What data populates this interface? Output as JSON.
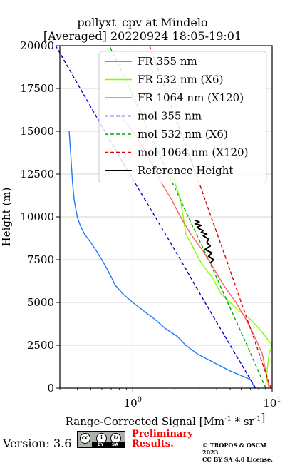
{
  "chart_data": {
    "type": "line",
    "title": "pollyxt_cpv at Mindelo",
    "subtitle": "[Averaged] 20220924 18:05-19:01",
    "xlabel": "Range-Corrected Signal [Mm^-1 * sr^-1]",
    "ylabel": "Height (m)",
    "xscale": "log",
    "xlim": [
      0.3,
      10
    ],
    "ylim": [
      0,
      20000
    ],
    "xticks": [
      {
        "value": 1,
        "label": "10^0"
      },
      {
        "value": 10,
        "label": "10^1"
      }
    ],
    "yticks": [
      0,
      2500,
      5000,
      7500,
      10000,
      12500,
      15000,
      17500,
      20000
    ],
    "ytick_labels": [
      "0",
      "2500",
      "5000",
      "7500",
      "10000",
      "12500",
      "15000",
      "17500",
      "20000"
    ],
    "grid": true,
    "legend_position": "top-right",
    "series": [
      {
        "name": "FR 355 nm",
        "style": "solid",
        "color": "#1f77ff",
        "x": [
          7.5,
          7.0,
          5.0,
          3.8,
          2.9,
          2.4,
          2.1,
          1.7,
          1.45,
          1.2,
          1.0,
          0.85,
          0.75,
          0.7,
          0.65,
          0.6,
          0.55,
          0.5,
          0.45,
          0.42,
          0.4,
          0.38,
          0.37,
          0.36,
          0.35
        ],
        "y": [
          0,
          500,
          1000,
          1500,
          2000,
          2500,
          3000,
          3500,
          4000,
          4500,
          5000,
          5500,
          6000,
          6500,
          7000,
          7500,
          8000,
          8500,
          9000,
          9500,
          10000,
          11000,
          12000,
          13500,
          15000
        ]
      },
      {
        "name": "FR 532 nm (X6)",
        "style": "solid",
        "color": "#80ff00",
        "x": [
          9.0,
          9.2,
          9.5,
          10.0,
          9.0,
          8.0,
          7.0,
          5.8,
          5.0,
          4.3,
          4.0,
          3.7,
          3.3,
          3.0,
          2.8,
          2.6,
          2.4,
          2.3,
          2.2,
          2.1,
          2.0,
          1.9
        ],
        "y": [
          0,
          1000,
          2000,
          2500,
          3000,
          3500,
          4000,
          4500,
          5000,
          5500,
          6000,
          6500,
          7000,
          7500,
          8000,
          8500,
          9000,
          10000,
          11000,
          11500,
          12000,
          12500
        ]
      },
      {
        "name": "FR 1064 nm (X120)",
        "style": "solid",
        "color": "#ff6060",
        "x": [
          9.5,
          9.0,
          8.5,
          7.5,
          6.5,
          5.5,
          4.5,
          3.8,
          3.2,
          2.6,
          2.2,
          1.9,
          1.6,
          1.4,
          1.2,
          1.0,
          0.8
        ],
        "y": [
          0,
          1000,
          2000,
          3000,
          4000,
          5000,
          6000,
          7000,
          8000,
          9000,
          10000,
          11000,
          12000,
          13000,
          14000,
          15000,
          16000
        ]
      },
      {
        "name": "mol 355 nm",
        "style": "dashed",
        "color": "#0000cc",
        "x": [
          7.6,
          5.0,
          3.3,
          2.2,
          1.45,
          0.95,
          0.63,
          0.42,
          0.28
        ],
        "y": [
          0,
          2500,
          5000,
          7500,
          10000,
          12500,
          15000,
          17500,
          20000
        ]
      },
      {
        "name": "mol 532 nm (X6)",
        "style": "dashed",
        "color": "#00aa00",
        "x": [
          9.0,
          6.6,
          4.8,
          3.5,
          2.5,
          1.8,
          1.3,
          0.95,
          0.68
        ],
        "y": [
          0,
          2500,
          5000,
          7500,
          10000,
          12500,
          15000,
          17500,
          20000
        ]
      },
      {
        "name": "mol 1064 nm (X120)",
        "style": "dashed",
        "color": "#dd0000",
        "x": [
          9.8,
          7.7,
          6.0,
          4.7,
          3.65,
          2.85,
          2.2,
          1.7,
          1.32
        ],
        "y": [
          0,
          2500,
          5000,
          7500,
          10000,
          12500,
          15000,
          17500,
          20000
        ]
      },
      {
        "name": "Reference Height",
        "style": "solid",
        "color": "#000000",
        "x": [
          3.6,
          3.8,
          3.5,
          3.7,
          3.3,
          3.6,
          3.4,
          3.5,
          3.2,
          3.4,
          3.1,
          3.2,
          3.0,
          2.9,
          3.1,
          2.8,
          3.0,
          2.8
        ],
        "y": [
          7300,
          7500,
          7700,
          7900,
          8100,
          8300,
          8500,
          8700,
          8900,
          9000,
          9100,
          9200,
          9300,
          9400,
          9500,
          9600,
          9700,
          9800
        ]
      }
    ]
  },
  "footer": {
    "version": "Version: 3.6",
    "cc_by": "BY",
    "cc_sa": "SA",
    "preliminary_line1": "Preliminary",
    "preliminary_line2": "Results.",
    "copyright_line1": "© TROPOS & OSCM 2023.",
    "copyright_line2": "CC BY SA 4.0 License."
  }
}
